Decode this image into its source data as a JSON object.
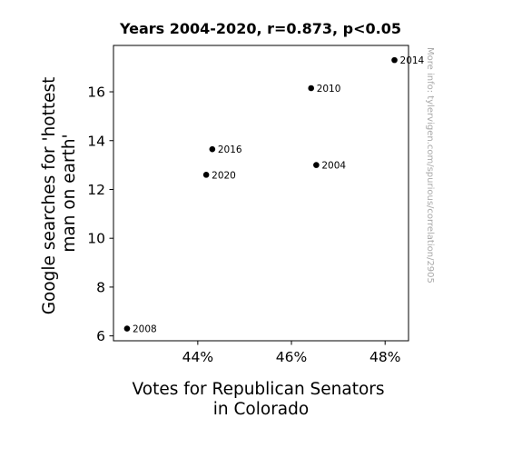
{
  "chart_data": {
    "type": "scatter",
    "title": "Years 2004-2020, r=0.873, p<0.05",
    "xlabel_lines": [
      "Votes for Republican Senators",
      "in Colorado"
    ],
    "ylabel_lines": [
      "Google searches for 'hottest",
      "man on earth'"
    ],
    "watermark": "More info: tylervigen.com/spurious/correlation/2905",
    "xlim": [
      42.2,
      48.5
    ],
    "ylim": [
      5.8,
      17.9
    ],
    "x_ticks": [
      44,
      46,
      48
    ],
    "x_tick_labels": [
      "44%",
      "46%",
      "48%"
    ],
    "y_ticks": [
      6,
      8,
      10,
      12,
      14,
      16
    ],
    "y_tick_labels": [
      "6",
      "8",
      "10",
      "12",
      "14",
      "16"
    ],
    "grid": false,
    "marker_color": "#000000",
    "points": [
      {
        "label": "2004",
        "x": 46.53,
        "y": 13.0
      },
      {
        "label": "2008",
        "x": 42.49,
        "y": 6.3
      },
      {
        "label": "2010",
        "x": 46.42,
        "y": 16.15
      },
      {
        "label": "2014",
        "x": 48.2,
        "y": 17.3
      },
      {
        "label": "2016",
        "x": 44.31,
        "y": 13.65
      },
      {
        "label": "2020",
        "x": 44.18,
        "y": 12.6
      }
    ]
  }
}
